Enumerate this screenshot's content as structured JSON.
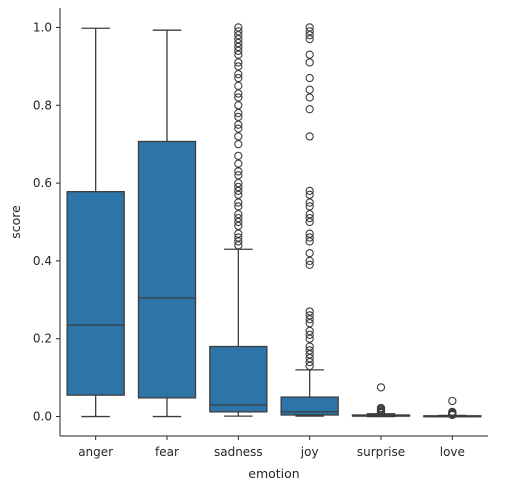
{
  "chart_data": {
    "type": "box",
    "xlabel": "emotion",
    "ylabel": "score",
    "categories": [
      "anger",
      "fear",
      "sadness",
      "joy",
      "surprise",
      "love"
    ],
    "ylim": [
      -0.05,
      1.05
    ],
    "yticks": [
      0.0,
      0.2,
      0.4,
      0.6,
      0.8,
      1.0
    ],
    "ytick_labels": [
      "0.0",
      "0.2",
      "0.4",
      "0.6",
      "0.8",
      "1.0"
    ],
    "box_color": "#2d74a8",
    "edge_color": "#3d3d3d",
    "grid": false,
    "boxes": [
      {
        "category": "anger",
        "whislo": 0.0,
        "q1": 0.055,
        "median": 0.235,
        "q3": 0.578,
        "whishi": 0.998,
        "fliers": []
      },
      {
        "category": "fear",
        "whislo": 0.0,
        "q1": 0.048,
        "median": 0.305,
        "q3": 0.707,
        "whishi": 0.993,
        "fliers": []
      },
      {
        "category": "sadness",
        "whislo": 0.001,
        "q1": 0.012,
        "median": 0.03,
        "q3": 0.18,
        "whishi": 0.43,
        "fliers": [
          0.44,
          0.45,
          0.46,
          0.47,
          0.49,
          0.5,
          0.51,
          0.52,
          0.54,
          0.55,
          0.57,
          0.58,
          0.59,
          0.6,
          0.62,
          0.63,
          0.65,
          0.67,
          0.7,
          0.72,
          0.74,
          0.75,
          0.77,
          0.78,
          0.8,
          0.82,
          0.83,
          0.85,
          0.87,
          0.88,
          0.9,
          0.91,
          0.93,
          0.94,
          0.95,
          0.96,
          0.97,
          0.98,
          0.99,
          1.0
        ]
      },
      {
        "category": "joy",
        "whislo": 0.001,
        "q1": 0.004,
        "median": 0.012,
        "q3": 0.05,
        "whishi": 0.12,
        "fliers": [
          0.13,
          0.14,
          0.15,
          0.16,
          0.17,
          0.18,
          0.2,
          0.21,
          0.22,
          0.24,
          0.25,
          0.26,
          0.27,
          0.39,
          0.4,
          0.42,
          0.45,
          0.46,
          0.47,
          0.5,
          0.51,
          0.52,
          0.54,
          0.55,
          0.57,
          0.58,
          0.72,
          0.79,
          0.82,
          0.84,
          0.87,
          0.91,
          0.93,
          0.97,
          0.98,
          0.99,
          1.0
        ]
      },
      {
        "category": "surprise",
        "whislo": 0.0,
        "q1": 0.001,
        "median": 0.002,
        "q3": 0.004,
        "whishi": 0.007,
        "fliers": [
          0.009,
          0.011,
          0.013,
          0.016,
          0.019,
          0.022,
          0.075
        ]
      },
      {
        "category": "love",
        "whislo": 0.0,
        "q1": 0.0,
        "median": 0.001,
        "q3": 0.002,
        "whishi": 0.003,
        "fliers": [
          0.004,
          0.006,
          0.008,
          0.01,
          0.012,
          0.04
        ]
      }
    ]
  }
}
